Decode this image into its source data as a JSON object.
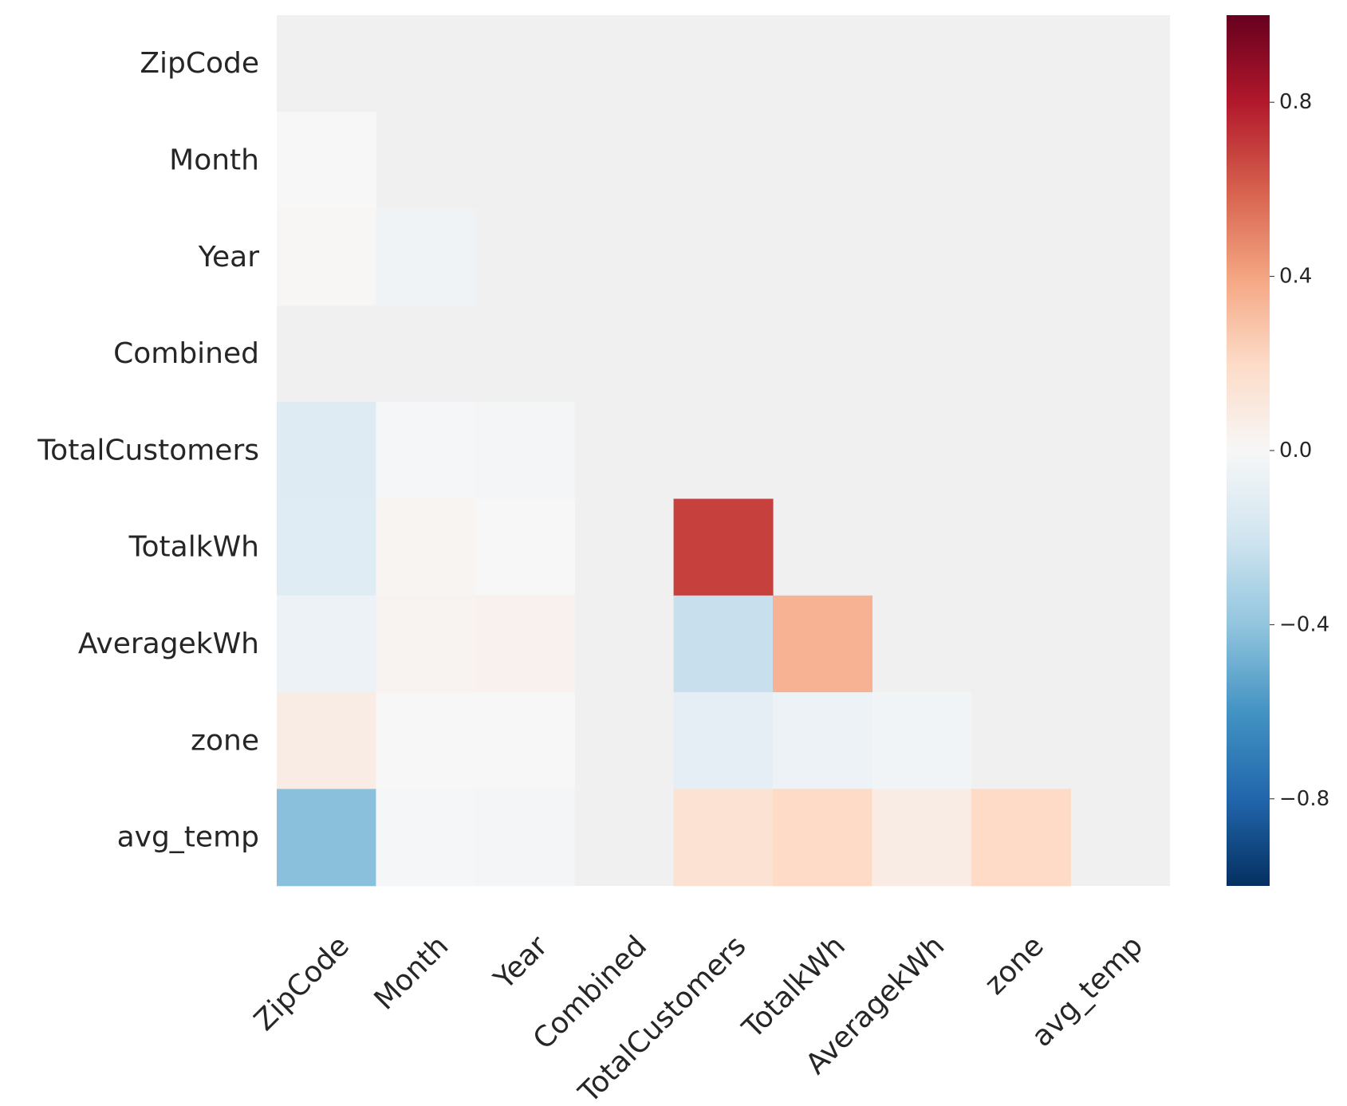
{
  "chart_data": {
    "type": "heatmap",
    "title": "",
    "xlabel": "",
    "ylabel": "",
    "rows": [
      "ZipCode",
      "Month",
      "Year",
      "Combined",
      "TotalCustomers",
      "TotalkWh",
      "AveragekWh",
      "zone",
      "avg_temp"
    ],
    "columns": [
      "ZipCode",
      "Month",
      "Year",
      "Combined",
      "TotalCustomers",
      "TotalkWh",
      "AveragekWh",
      "zone",
      "avg_temp"
    ],
    "mask": "upper-triangle-and-diagonal",
    "values": [
      [
        null,
        null,
        null,
        null,
        null,
        null,
        null,
        null,
        null
      ],
      [
        0.0,
        null,
        null,
        null,
        null,
        null,
        null,
        null,
        null
      ],
      [
        0.01,
        -0.04,
        null,
        null,
        null,
        null,
        null,
        null,
        null
      ],
      [
        null,
        null,
        null,
        null,
        null,
        null,
        null,
        null,
        null
      ],
      [
        -0.13,
        -0.01,
        -0.02,
        null,
        null,
        null,
        null,
        null,
        null
      ],
      [
        -0.12,
        0.02,
        0.0,
        null,
        0.69,
        null,
        null,
        null,
        null
      ],
      [
        -0.06,
        0.03,
        0.04,
        null,
        -0.23,
        0.35,
        null,
        null,
        null
      ],
      [
        0.08,
        0.0,
        0.0,
        null,
        -0.1,
        -0.06,
        -0.03,
        null,
        null
      ],
      [
        -0.42,
        -0.01,
        -0.02,
        null,
        0.15,
        0.2,
        0.08,
        0.2,
        null
      ]
    ],
    "masked_color": "#f0f0f0",
    "colorbar": {
      "colormap": "RdBu_r",
      "vmin": -1.0,
      "vmax": 1.0,
      "ticks": [
        {
          "value": 0.8,
          "label": "0.8"
        },
        {
          "value": 0.4,
          "label": "0.4"
        },
        {
          "value": 0.0,
          "label": "0.0"
        },
        {
          "value": -0.4,
          "label": "−0.4"
        },
        {
          "value": -0.8,
          "label": "−0.8"
        }
      ]
    }
  }
}
